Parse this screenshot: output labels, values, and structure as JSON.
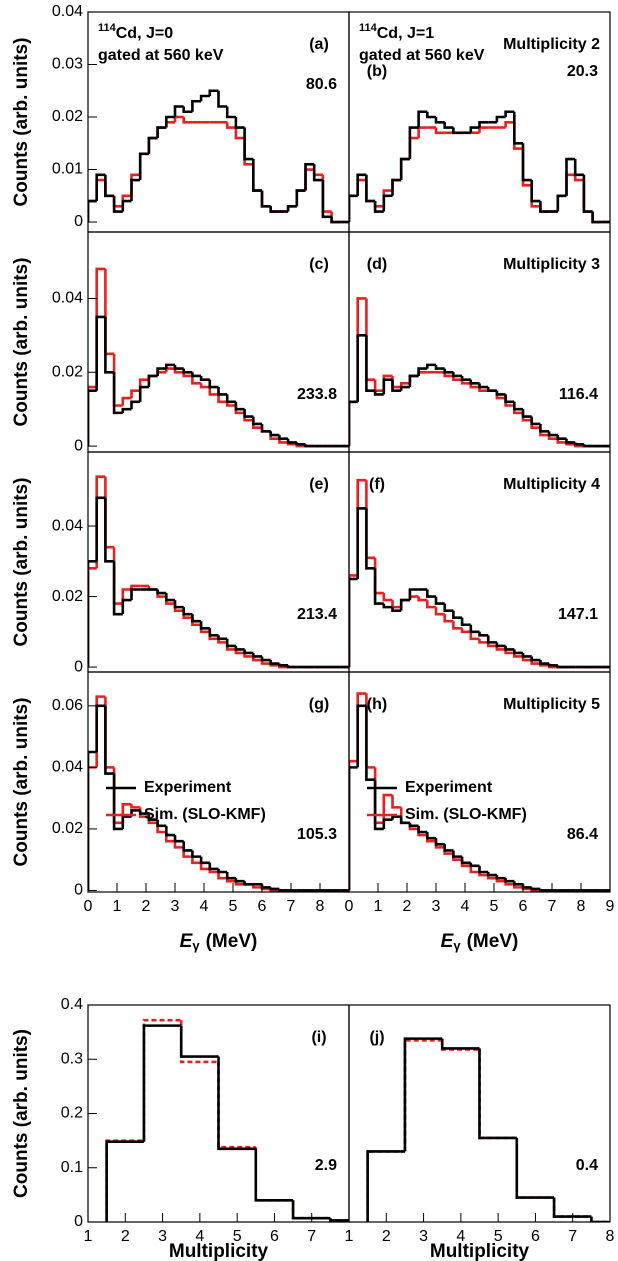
{
  "chart_data": [
    {
      "type": "histogram",
      "panel_label": "(a)",
      "annotation": "80.6",
      "nucleus": {
        "mass": "114",
        "label": "Cd, J=0"
      },
      "gate": "gated at 560 keV",
      "ylabel": "Counts (arb. units)",
      "xlim": [
        0,
        9
      ],
      "ylim": [
        -0.0019,
        0.04
      ],
      "yticks": [
        0,
        0.01,
        0.02,
        0.03,
        0.04
      ],
      "bins": [
        0,
        0.3,
        0.6,
        0.9,
        1.2,
        1.5,
        1.8,
        2.1,
        2.4,
        2.7,
        3,
        3.3,
        3.6,
        3.9,
        4.2,
        4.5,
        4.8,
        5.1,
        5.4,
        5.7,
        6,
        6.3,
        6.6,
        6.9,
        7.2,
        7.5,
        7.8,
        8.1,
        8.4,
        8.7,
        9
      ],
      "series": [
        {
          "color": "#000000",
          "values": [
            0.004,
            0.009,
            0.005,
            0.002,
            0.004,
            0.008,
            0.013,
            0.016,
            0.018,
            0.02,
            0.022,
            0.021,
            0.023,
            0.024,
            0.025,
            0.022,
            0.02,
            0.018,
            0.012,
            0.006,
            0.003,
            0.002,
            0.002,
            0.003,
            0.006,
            0.011,
            0.008,
            0.001,
            0,
            0
          ]
        },
        {
          "color": "#e8201e",
          "values": [
            0.004,
            0.008,
            0.005,
            0.003,
            0.005,
            0.009,
            0.013,
            0.016,
            0.018,
            0.019,
            0.02,
            0.019,
            0.019,
            0.019,
            0.019,
            0.019,
            0.018,
            0.016,
            0.011,
            0.006,
            0.003,
            0.002,
            0.002,
            0.003,
            0.006,
            0.01,
            0.009,
            0.002,
            0,
            0
          ]
        }
      ]
    },
    {
      "type": "histogram",
      "panel_label": "(b)",
      "annotation": "20.3",
      "nucleus": {
        "mass": "114",
        "label": "Cd, J=1"
      },
      "gate": "gated at 560 keV",
      "multiplicity_label": "Multiplicity 2",
      "xlim": [
        0,
        9
      ],
      "ylim": [
        -0.0019,
        0.04
      ],
      "bins": [
        0,
        0.3,
        0.6,
        0.9,
        1.2,
        1.5,
        1.8,
        2.1,
        2.4,
        2.7,
        3,
        3.3,
        3.6,
        3.9,
        4.2,
        4.5,
        4.8,
        5.1,
        5.4,
        5.7,
        6,
        6.3,
        6.6,
        6.9,
        7.2,
        7.5,
        7.8,
        8.1,
        8.4,
        8.7,
        9
      ],
      "series": [
        {
          "color": "#000000",
          "values": [
            0.005,
            0.009,
            0.004,
            0.002,
            0.005,
            0.008,
            0.012,
            0.018,
            0.021,
            0.02,
            0.019,
            0.018,
            0.017,
            0.017,
            0.018,
            0.019,
            0.019,
            0.02,
            0.021,
            0.015,
            0.008,
            0.004,
            0.002,
            0.002,
            0.005,
            0.012,
            0.009,
            0.002,
            0,
            0
          ]
        },
        {
          "color": "#e8201e",
          "values": [
            0.005,
            0.008,
            0.004,
            0.003,
            0.006,
            0.008,
            0.012,
            0.016,
            0.018,
            0.018,
            0.017,
            0.017,
            0.017,
            0.017,
            0.017,
            0.018,
            0.018,
            0.018,
            0.019,
            0.014,
            0.007,
            0.003,
            0.002,
            0.002,
            0.005,
            0.009,
            0.008,
            0.002,
            0,
            0
          ]
        }
      ]
    },
    {
      "type": "histogram",
      "panel_label": "(c)",
      "annotation": "233.8",
      "ylabel": "Counts (arb. units)",
      "xlim": [
        0,
        9
      ],
      "ylim": [
        -0.0016,
        0.058
      ],
      "yticks": [
        0,
        0.02,
        0.04
      ],
      "bins": [
        0,
        0.3,
        0.6,
        0.9,
        1.2,
        1.5,
        1.8,
        2.1,
        2.4,
        2.7,
        3,
        3.3,
        3.6,
        3.9,
        4.2,
        4.5,
        4.8,
        5.1,
        5.4,
        5.7,
        6,
        6.3,
        6.6,
        6.9,
        7.2,
        7.5,
        7.8,
        8.1,
        8.4,
        8.7,
        9
      ],
      "series": [
        {
          "color": "#000000",
          "values": [
            0.015,
            0.035,
            0.02,
            0.009,
            0.01,
            0.012,
            0.016,
            0.019,
            0.021,
            0.022,
            0.021,
            0.02,
            0.019,
            0.018,
            0.016,
            0.014,
            0.012,
            0.01,
            0.008,
            0.006,
            0.004,
            0.003,
            0.002,
            0.001,
            0.0005,
            0,
            0,
            0,
            0,
            0
          ]
        },
        {
          "color": "#e8201e",
          "values": [
            0.016,
            0.048,
            0.025,
            0.011,
            0.013,
            0.015,
            0.018,
            0.019,
            0.02,
            0.021,
            0.02,
            0.019,
            0.017,
            0.016,
            0.014,
            0.012,
            0.011,
            0.009,
            0.007,
            0.005,
            0.004,
            0.002,
            0.001,
            0.0005,
            0,
            0,
            0,
            0,
            0,
            0
          ]
        }
      ]
    },
    {
      "type": "histogram",
      "panel_label": "(d)",
      "annotation": "116.4",
      "multiplicity_label": "Multiplicity 3",
      "xlim": [
        0,
        9
      ],
      "ylim": [
        -0.0016,
        0.058
      ],
      "bins": [
        0,
        0.3,
        0.6,
        0.9,
        1.2,
        1.5,
        1.8,
        2.1,
        2.4,
        2.7,
        3,
        3.3,
        3.6,
        3.9,
        4.2,
        4.5,
        4.8,
        5.1,
        5.4,
        5.7,
        6,
        6.3,
        6.6,
        6.9,
        7.2,
        7.5,
        7.8,
        8.1,
        8.4,
        8.7,
        9
      ],
      "series": [
        {
          "color": "#000000",
          "values": [
            0.012,
            0.03,
            0.015,
            0.014,
            0.018,
            0.015,
            0.016,
            0.019,
            0.021,
            0.022,
            0.021,
            0.02,
            0.019,
            0.018,
            0.017,
            0.016,
            0.015,
            0.014,
            0.012,
            0.01,
            0.008,
            0.006,
            0.004,
            0.003,
            0.002,
            0.001,
            0.0005,
            0,
            0,
            0
          ]
        },
        {
          "color": "#e8201e",
          "values": [
            0.012,
            0.04,
            0.018,
            0.015,
            0.019,
            0.016,
            0.017,
            0.019,
            0.02,
            0.02,
            0.02,
            0.019,
            0.018,
            0.017,
            0.016,
            0.015,
            0.015,
            0.013,
            0.011,
            0.009,
            0.007,
            0.005,
            0.003,
            0.002,
            0.001,
            0.0005,
            0,
            0,
            0,
            0
          ]
        }
      ]
    },
    {
      "type": "histogram",
      "panel_label": "(e)",
      "annotation": "213.4",
      "ylabel": "Counts (arb. units)",
      "xlim": [
        0,
        9
      ],
      "ylim": [
        -0.0014,
        0.061
      ],
      "yticks": [
        0,
        0.02,
        0.04
      ],
      "bins": [
        0,
        0.3,
        0.6,
        0.9,
        1.2,
        1.5,
        1.8,
        2.1,
        2.4,
        2.7,
        3,
        3.3,
        3.6,
        3.9,
        4.2,
        4.5,
        4.8,
        5.1,
        5.4,
        5.7,
        6,
        6.3,
        6.6,
        6.9,
        7.2,
        7.5,
        7.8,
        8.1,
        8.4,
        8.7,
        9
      ],
      "series": [
        {
          "color": "#000000",
          "values": [
            0.03,
            0.048,
            0.03,
            0.015,
            0.019,
            0.022,
            0.022,
            0.022,
            0.021,
            0.019,
            0.017,
            0.015,
            0.013,
            0.011,
            0.009,
            0.008,
            0.006,
            0.005,
            0.004,
            0.003,
            0.002,
            0.001,
            0.0005,
            0,
            0,
            0,
            0,
            0,
            0,
            0
          ]
        },
        {
          "color": "#e8201e",
          "values": [
            0.028,
            0.054,
            0.034,
            0.018,
            0.022,
            0.023,
            0.023,
            0.022,
            0.02,
            0.018,
            0.016,
            0.014,
            0.012,
            0.01,
            0.008,
            0.007,
            0.005,
            0.004,
            0.003,
            0.002,
            0.001,
            0.0005,
            0,
            0,
            0,
            0,
            0,
            0,
            0,
            0
          ]
        }
      ]
    },
    {
      "type": "histogram",
      "panel_label": "(f)",
      "annotation": "147.1",
      "multiplicity_label": "Multiplicity 4",
      "xlim": [
        0,
        9
      ],
      "ylim": [
        -0.0014,
        0.061
      ],
      "bins": [
        0,
        0.3,
        0.6,
        0.9,
        1.2,
        1.5,
        1.8,
        2.1,
        2.4,
        2.7,
        3,
        3.3,
        3.6,
        3.9,
        4.2,
        4.5,
        4.8,
        5.1,
        5.4,
        5.7,
        6,
        6.3,
        6.6,
        6.9,
        7.2,
        7.5,
        7.8,
        8.1,
        8.4,
        8.7,
        9
      ],
      "series": [
        {
          "color": "#000000",
          "values": [
            0.025,
            0.045,
            0.028,
            0.018,
            0.017,
            0.016,
            0.019,
            0.022,
            0.022,
            0.02,
            0.018,
            0.016,
            0.014,
            0.012,
            0.01,
            0.009,
            0.007,
            0.006,
            0.005,
            0.004,
            0.003,
            0.002,
            0.001,
            0.0005,
            0,
            0,
            0,
            0,
            0,
            0
          ]
        },
        {
          "color": "#e8201e",
          "values": [
            0.026,
            0.053,
            0.031,
            0.021,
            0.019,
            0.017,
            0.019,
            0.02,
            0.019,
            0.017,
            0.015,
            0.013,
            0.011,
            0.01,
            0.008,
            0.007,
            0.006,
            0.005,
            0.004,
            0.003,
            0.002,
            0.001,
            0.0005,
            0,
            0,
            0,
            0,
            0,
            0,
            0
          ]
        }
      ]
    },
    {
      "type": "histogram",
      "panel_label": "(g)",
      "annotation": "105.3",
      "ylabel": "Counts (arb. units)",
      "legend": true,
      "xlabel": {
        "symbol": "E",
        "subscript": "γ",
        "unit": "(MeV)"
      },
      "xlim": [
        0,
        9
      ],
      "ylim": [
        -0.0005,
        0.071
      ],
      "xticks": [
        0,
        1,
        2,
        3,
        4,
        5,
        6,
        7,
        8
      ],
      "yticks": [
        0,
        0.02,
        0.04,
        0.06
      ],
      "bins": [
        0,
        0.3,
        0.6,
        0.9,
        1.2,
        1.5,
        1.8,
        2.1,
        2.4,
        2.7,
        3,
        3.3,
        3.6,
        3.9,
        4.2,
        4.5,
        4.8,
        5.1,
        5.4,
        5.7,
        6,
        6.3,
        6.6,
        6.9,
        7.2,
        7.5,
        7.8,
        8.1,
        8.4,
        8.7,
        9
      ],
      "series": [
        {
          "name": "Experiment",
          "color": "#000000",
          "values": [
            0.045,
            0.06,
            0.038,
            0.02,
            0.024,
            0.026,
            0.025,
            0.023,
            0.021,
            0.018,
            0.016,
            0.013,
            0.011,
            0.009,
            0.007,
            0.006,
            0.004,
            0.003,
            0.002,
            0.002,
            0.001,
            0.0005,
            0,
            0,
            0,
            0,
            0,
            0,
            0,
            0
          ]
        },
        {
          "name": "Sim. (SLO-KMF)",
          "color": "#e8201e",
          "values": [
            0.04,
            0.063,
            0.04,
            0.022,
            0.028,
            0.027,
            0.024,
            0.022,
            0.019,
            0.016,
            0.014,
            0.011,
            0.009,
            0.007,
            0.006,
            0.004,
            0.003,
            0.002,
            0.002,
            0.001,
            0.0005,
            0,
            0,
            0,
            0,
            0,
            0,
            0,
            0,
            0
          ]
        }
      ]
    },
    {
      "type": "histogram",
      "panel_label": "(h)",
      "annotation": "86.4",
      "multiplicity_label": "Multiplicity 5",
      "legend": true,
      "xlabel": {
        "symbol": "E",
        "subscript": "γ",
        "unit": "(MeV)"
      },
      "xlim": [
        0,
        9
      ],
      "ylim": [
        -0.0005,
        0.071
      ],
      "xticks": [
        0,
        1,
        2,
        3,
        4,
        5,
        6,
        7,
        8,
        9
      ],
      "bins": [
        0,
        0.3,
        0.6,
        0.9,
        1.2,
        1.5,
        1.8,
        2.1,
        2.4,
        2.7,
        3,
        3.3,
        3.6,
        3.9,
        4.2,
        4.5,
        4.8,
        5.1,
        5.4,
        5.7,
        6,
        6.3,
        6.6,
        6.9,
        7.2,
        7.5,
        7.8,
        8.1,
        8.4,
        8.7,
        9
      ],
      "series": [
        {
          "name": "Experiment",
          "color": "#000000",
          "values": [
            0.04,
            0.06,
            0.036,
            0.02,
            0.023,
            0.024,
            0.022,
            0.021,
            0.019,
            0.017,
            0.015,
            0.013,
            0.011,
            0.009,
            0.008,
            0.006,
            0.005,
            0.004,
            0.003,
            0.002,
            0.001,
            0.0005,
            0,
            0,
            0,
            0,
            0,
            0,
            0,
            0
          ]
        },
        {
          "name": "Sim. (SLO-KMF)",
          "color": "#e8201e",
          "values": [
            0.042,
            0.064,
            0.04,
            0.022,
            0.031,
            0.027,
            0.022,
            0.02,
            0.018,
            0.016,
            0.014,
            0.012,
            0.01,
            0.008,
            0.006,
            0.005,
            0.004,
            0.003,
            0.002,
            0.001,
            0.0005,
            0,
            0,
            0,
            0,
            0,
            0,
            0,
            0,
            0
          ]
        }
      ]
    },
    {
      "type": "histogram",
      "panel_label": "(i)",
      "annotation": "2.9",
      "ylabel": "Counts (arb. units)",
      "xlabel": "Multiplicity",
      "xlim": [
        1,
        8
      ],
      "ylim": [
        0,
        0.4
      ],
      "xticks": [
        1,
        2,
        3,
        4,
        5,
        6,
        7
      ],
      "yticks": [
        0,
        0.1,
        0.2,
        0.3,
        0.4
      ],
      "bins": [
        1.5,
        2.5,
        3.5,
        4.5,
        5.5,
        6.5,
        7.5,
        8.5
      ],
      "series": [
        {
          "color": "#000000",
          "values": [
            0.148,
            0.362,
            0.305,
            0.135,
            0.04,
            0.007,
            0.003
          ]
        },
        {
          "color": "#e8201e",
          "values": [
            0.15,
            0.372,
            0.295,
            0.138,
            0.04,
            0.007,
            0.003
          ]
        }
      ]
    },
    {
      "type": "histogram",
      "panel_label": "(j)",
      "annotation": "0.4",
      "xlabel": "Multiplicity",
      "xlim": [
        1,
        8
      ],
      "ylim": [
        0,
        0.4
      ],
      "xticks": [
        1,
        2,
        3,
        4,
        5,
        6,
        7,
        8
      ],
      "bins": [
        1.5,
        2.5,
        3.5,
        4.5,
        5.5,
        6.5,
        7.5,
        8.5
      ],
      "series": [
        {
          "color": "#000000",
          "values": [
            0.13,
            0.338,
            0.32,
            0.155,
            0.045,
            0.01,
            0
          ]
        },
        {
          "color": "#e8201e",
          "values": [
            0.13,
            0.335,
            0.318,
            0.155,
            0.045,
            0.01,
            0
          ]
        }
      ]
    }
  ]
}
